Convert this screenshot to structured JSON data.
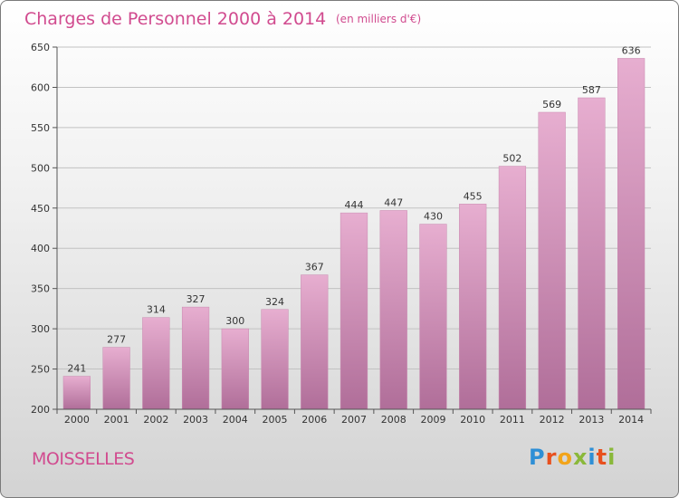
{
  "title": "Charges de Personnel 2000 à 2014",
  "subtitle": "(en milliers d'€)",
  "commune": "MOISSELLES",
  "logo": {
    "text": "Proxiti",
    "colors": [
      "#2e8fd6",
      "#e8501e",
      "#f2a41a",
      "#8ab83a",
      "#2e8fd6",
      "#e8501e",
      "#8ab83a"
    ]
  },
  "colors": {
    "accent": "#d14b8f",
    "bar_top": "#e7aed0",
    "bar_bottom": "#b06e99"
  },
  "chart_data": {
    "type": "bar",
    "categories": [
      "2000",
      "2001",
      "2002",
      "2003",
      "2004",
      "2005",
      "2006",
      "2007",
      "2008",
      "2009",
      "2010",
      "2011",
      "2012",
      "2013",
      "2014"
    ],
    "values": [
      241,
      277,
      314,
      327,
      300,
      324,
      367,
      444,
      447,
      430,
      455,
      502,
      569,
      587,
      636
    ],
    "ylim": [
      200,
      650
    ],
    "yticks": [
      200,
      250,
      300,
      350,
      400,
      450,
      500,
      550,
      600,
      650
    ],
    "grid": true,
    "data_labels": true
  }
}
